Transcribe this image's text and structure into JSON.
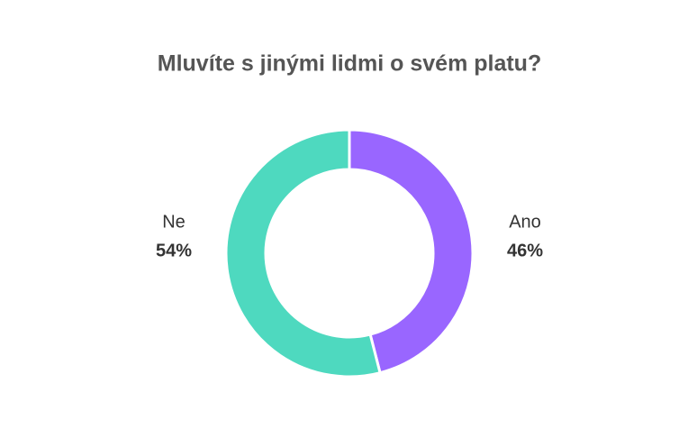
{
  "chart_data": {
    "type": "pie",
    "title": "Mluvíte s jinými lidmi o svém platu?",
    "categories": [
      "Ano",
      "Ne"
    ],
    "values": [
      46,
      54
    ],
    "value_labels": [
      "46%",
      "54%"
    ],
    "colors": [
      "#9966ff",
      "#4ed9bf"
    ],
    "donut": true
  }
}
